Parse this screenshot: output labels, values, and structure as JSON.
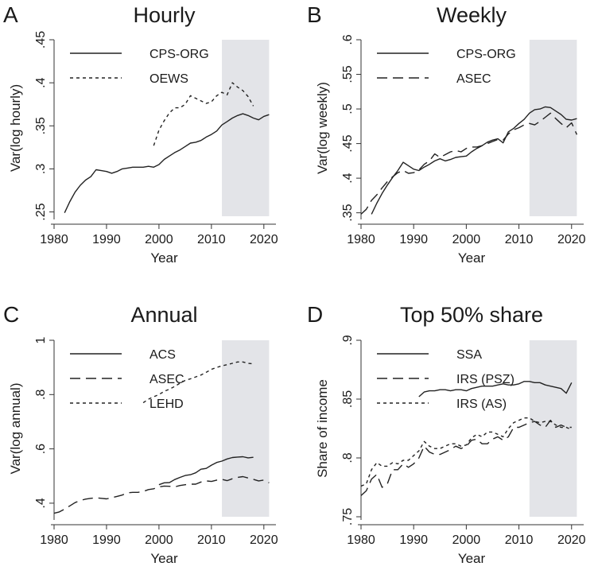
{
  "chart_data": [
    {
      "type": "line",
      "letter": "A",
      "title": "Hourly",
      "xlabel": "Year",
      "ylabel": "Var(log hourly)",
      "xlim": [
        1980,
        2022
      ],
      "ylim": [
        0.245,
        0.45
      ],
      "xticks": [
        1980,
        1990,
        2000,
        2010,
        2020
      ],
      "yticks": [
        0.25,
        0.3,
        0.35,
        0.4,
        0.45
      ],
      "ytick_labels": [
        ".25",
        ".3",
        ".35",
        ".4",
        ".45"
      ],
      "shade": [
        2012,
        2021
      ],
      "legend": "top-left",
      "series": [
        {
          "name": "CPS-ORG",
          "style": "solid",
          "x": [
            1982,
            1983,
            1984,
            1985,
            1986,
            1987,
            1988,
            1989,
            1990,
            1991,
            1992,
            1993,
            1994,
            1995,
            1996,
            1997,
            1998,
            1999,
            2000,
            2001,
            2002,
            2003,
            2004,
            2005,
            2006,
            2007,
            2008,
            2009,
            2010,
            2011,
            2012,
            2013,
            2014,
            2015,
            2016,
            2017,
            2018,
            2019,
            2020,
            2021
          ],
          "y": [
            0.249,
            0.262,
            0.273,
            0.281,
            0.287,
            0.291,
            0.299,
            0.298,
            0.297,
            0.295,
            0.297,
            0.3,
            0.301,
            0.302,
            0.302,
            0.302,
            0.303,
            0.302,
            0.305,
            0.311,
            0.315,
            0.319,
            0.322,
            0.326,
            0.33,
            0.331,
            0.333,
            0.337,
            0.34,
            0.344,
            0.351,
            0.355,
            0.359,
            0.362,
            0.364,
            0.362,
            0.359,
            0.357,
            0.361,
            0.363
          ]
        },
        {
          "name": "OEWS",
          "style": "dash",
          "x": [
            1999,
            2000,
            2001,
            2002,
            2003,
            2004,
            2005,
            2006,
            2007,
            2008,
            2009,
            2010,
            2011,
            2012,
            2013,
            2014,
            2015,
            2016,
            2017,
            2018
          ],
          "y": [
            0.327,
            0.345,
            0.356,
            0.365,
            0.371,
            0.371,
            0.375,
            0.385,
            0.382,
            0.379,
            0.376,
            0.378,
            0.385,
            0.389,
            0.386,
            0.4,
            0.395,
            0.391,
            0.384,
            0.373
          ]
        }
      ]
    },
    {
      "type": "line",
      "letter": "B",
      "title": "Weekly",
      "xlabel": "Year",
      "ylabel": "Var(log weekly)",
      "xlim": [
        1980,
        2022
      ],
      "ylim": [
        0.345,
        0.6
      ],
      "xticks": [
        1980,
        1990,
        2000,
        2010,
        2020
      ],
      "yticks": [
        0.35,
        0.4,
        0.45,
        0.5,
        0.55,
        0.6
      ],
      "ytick_labels": [
        ".35",
        ".4",
        ".45",
        ".5",
        ".55",
        ".6"
      ],
      "shade": [
        2012,
        2021
      ],
      "legend": "top-left",
      "series": [
        {
          "name": "CPS-ORG",
          "style": "solid",
          "x": [
            1982,
            1983,
            1984,
            1985,
            1986,
            1987,
            1988,
            1989,
            1990,
            1991,
            1992,
            1993,
            1994,
            1995,
            1996,
            1997,
            1998,
            1999,
            2000,
            2001,
            2002,
            2003,
            2004,
            2005,
            2006,
            2007,
            2008,
            2009,
            2010,
            2011,
            2012,
            2013,
            2014,
            2015,
            2016,
            2017,
            2018,
            2019,
            2020,
            2021
          ],
          "y": [
            0.348,
            0.364,
            0.378,
            0.39,
            0.401,
            0.411,
            0.423,
            0.418,
            0.413,
            0.411,
            0.416,
            0.42,
            0.425,
            0.428,
            0.425,
            0.427,
            0.43,
            0.431,
            0.432,
            0.438,
            0.443,
            0.447,
            0.452,
            0.455,
            0.457,
            0.451,
            0.467,
            0.472,
            0.479,
            0.485,
            0.494,
            0.499,
            0.5,
            0.503,
            0.502,
            0.497,
            0.492,
            0.485,
            0.484,
            0.486
          ]
        },
        {
          "name": "ASEC",
          "style": "longdash",
          "x": [
            1980,
            1981,
            1982,
            1983,
            1984,
            1985,
            1986,
            1987,
            1988,
            1989,
            1990,
            1991,
            1992,
            1993,
            1994,
            1995,
            1996,
            1997,
            1998,
            1999,
            2000,
            2001,
            2002,
            2003,
            2004,
            2005,
            2006,
            2007,
            2008,
            2009,
            2010,
            2011,
            2012,
            2013,
            2014,
            2015,
            2016,
            2017,
            2018,
            2019,
            2020,
            2021
          ],
          "y": [
            0.348,
            0.355,
            0.368,
            0.376,
            0.386,
            0.395,
            0.402,
            0.408,
            0.411,
            0.407,
            0.408,
            0.412,
            0.42,
            0.425,
            0.435,
            0.43,
            0.434,
            0.438,
            0.44,
            0.438,
            0.443,
            0.445,
            0.445,
            0.447,
            0.45,
            0.453,
            0.456,
            0.455,
            0.464,
            0.47,
            0.473,
            0.477,
            0.479,
            0.477,
            0.482,
            0.488,
            0.494,
            0.486,
            0.479,
            0.473,
            0.48,
            0.463
          ]
        }
      ]
    },
    {
      "type": "line",
      "letter": "C",
      "title": "Annual",
      "xlabel": "Year",
      "ylabel": "Var(log annual)",
      "xlim": [
        1980,
        2022
      ],
      "ylim": [
        0.35,
        1.0
      ],
      "xticks": [
        1980,
        1990,
        2000,
        2010,
        2020
      ],
      "yticks": [
        0.4,
        0.6,
        0.8,
        1.0
      ],
      "ytick_labels": [
        ".4",
        ".6",
        ".8",
        "1"
      ],
      "shade": [
        2012,
        2021
      ],
      "legend": "top-left",
      "series": [
        {
          "name": "ACS",
          "style": "solid",
          "x": [
            2000,
            2001,
            2002,
            2003,
            2004,
            2005,
            2006,
            2007,
            2008,
            2009,
            2010,
            2011,
            2012,
            2013,
            2014,
            2015,
            2016,
            2017,
            2018
          ],
          "y": [
            0.468,
            0.475,
            0.476,
            0.487,
            0.495,
            0.502,
            0.505,
            0.512,
            0.525,
            0.528,
            0.54,
            0.55,
            0.555,
            0.563,
            0.568,
            0.57,
            0.571,
            0.567,
            0.569
          ]
        },
        {
          "name": "ASEC",
          "style": "longdash",
          "x": [
            1980,
            1981,
            1982,
            1983,
            1984,
            1985,
            1986,
            1987,
            1988,
            1989,
            1990,
            1991,
            1992,
            1993,
            1994,
            1995,
            1996,
            1997,
            1998,
            1999,
            2000,
            2001,
            2002,
            2003,
            2004,
            2005,
            2006,
            2007,
            2008,
            2009,
            2010,
            2011,
            2012,
            2013,
            2014,
            2015,
            2016,
            2017,
            2018,
            2019,
            2020,
            2021
          ],
          "y": [
            0.363,
            0.368,
            0.378,
            0.39,
            0.402,
            0.41,
            0.415,
            0.418,
            0.42,
            0.418,
            0.416,
            0.42,
            0.425,
            0.43,
            0.438,
            0.44,
            0.44,
            0.443,
            0.45,
            0.453,
            0.46,
            0.463,
            0.462,
            0.46,
            0.465,
            0.468,
            0.47,
            0.47,
            0.478,
            0.482,
            0.48,
            0.485,
            0.488,
            0.483,
            0.49,
            0.495,
            0.498,
            0.493,
            0.488,
            0.482,
            0.485,
            0.475
          ]
        },
        {
          "name": "LEHD",
          "style": "dash",
          "x": [
            1997,
            1998,
            1999,
            2000,
            2001,
            2002,
            2003,
            2004,
            2005,
            2006,
            2007,
            2008,
            2009,
            2010,
            2011,
            2012,
            2013,
            2014,
            2015,
            2016,
            2017,
            2018
          ],
          "y": [
            0.77,
            0.783,
            0.792,
            0.8,
            0.812,
            0.82,
            0.83,
            0.842,
            0.852,
            0.858,
            0.865,
            0.872,
            0.882,
            0.893,
            0.9,
            0.906,
            0.91,
            0.915,
            0.92,
            0.92,
            0.915,
            0.913
          ]
        }
      ]
    },
    {
      "type": "line",
      "letter": "D",
      "title": "Top 50% share",
      "xlabel": "Year",
      "ylabel": "Share of income",
      "xlim": [
        1980,
        2022
      ],
      "ylim": [
        0.75,
        0.9
      ],
      "xticks": [
        1980,
        1990,
        2000,
        2010,
        2020
      ],
      "yticks": [
        0.75,
        0.8,
        0.85,
        0.9
      ],
      "ytick_labels": [
        ".75",
        ".8",
        ".85",
        ".9"
      ],
      "shade": [
        2012,
        2021
      ],
      "legend": "top-left",
      "series": [
        {
          "name": "SSA",
          "style": "solid",
          "x": [
            1991,
            1992,
            1993,
            1994,
            1995,
            1996,
            1997,
            1998,
            1999,
            2000,
            2001,
            2002,
            2003,
            2004,
            2005,
            2006,
            2007,
            2008,
            2009,
            2010,
            2011,
            2012,
            2013,
            2014,
            2015,
            2016,
            2017,
            2018,
            2019,
            2020
          ],
          "y": [
            0.852,
            0.856,
            0.857,
            0.857,
            0.858,
            0.858,
            0.857,
            0.858,
            0.858,
            0.857,
            0.859,
            0.86,
            0.861,
            0.861,
            0.861,
            0.862,
            0.863,
            0.862,
            0.862,
            0.863,
            0.865,
            0.865,
            0.864,
            0.864,
            0.862,
            0.861,
            0.86,
            0.859,
            0.855,
            0.864
          ]
        },
        {
          "name": "IRS (PSZ)",
          "style": "longdash",
          "x": [
            1980,
            1981,
            1982,
            1983,
            1984,
            1985,
            1986,
            1987,
            1988,
            1989,
            1990,
            1991,
            1992,
            1993,
            1994,
            1995,
            1996,
            1997,
            1998,
            1999,
            2000,
            2001,
            2002,
            2003,
            2004,
            2005,
            2006,
            2007,
            2008,
            2009,
            2010,
            2011,
            2012,
            2013,
            2014,
            2015,
            2016,
            2017,
            2018,
            2019,
            2020
          ],
          "y": [
            0.768,
            0.772,
            0.782,
            0.786,
            0.775,
            0.778,
            0.79,
            0.79,
            0.795,
            0.792,
            0.795,
            0.8,
            0.81,
            0.805,
            0.803,
            0.803,
            0.805,
            0.807,
            0.81,
            0.808,
            0.81,
            0.815,
            0.816,
            0.812,
            0.812,
            0.816,
            0.818,
            0.815,
            0.818,
            0.826,
            0.826,
            0.828,
            0.83,
            0.831,
            0.828,
            0.826,
            0.832,
            0.826,
            0.828,
            0.826,
            0.826
          ]
        },
        {
          "name": "IRS (AS)",
          "style": "dash",
          "x": [
            1980,
            1981,
            1982,
            1983,
            1984,
            1985,
            1986,
            1987,
            1988,
            1989,
            1990,
            1991,
            1992,
            1993,
            1994,
            1995,
            1996,
            1997,
            1998,
            1999,
            2000,
            2001,
            2002,
            2003,
            2004,
            2005,
            2006,
            2007,
            2008,
            2009,
            2010,
            2011,
            2012,
            2013,
            2014,
            2015,
            2016,
            2017,
            2018,
            2019,
            2020
          ],
          "y": [
            0.776,
            0.778,
            0.79,
            0.796,
            0.793,
            0.793,
            0.796,
            0.795,
            0.798,
            0.798,
            0.802,
            0.806,
            0.814,
            0.81,
            0.808,
            0.808,
            0.81,
            0.812,
            0.812,
            0.81,
            0.811,
            0.817,
            0.82,
            0.818,
            0.822,
            0.822,
            0.82,
            0.818,
            0.825,
            0.83,
            0.832,
            0.834,
            0.834,
            0.831,
            0.83,
            0.831,
            0.831,
            0.828,
            0.826,
            0.826,
            0.824
          ]
        }
      ]
    }
  ]
}
